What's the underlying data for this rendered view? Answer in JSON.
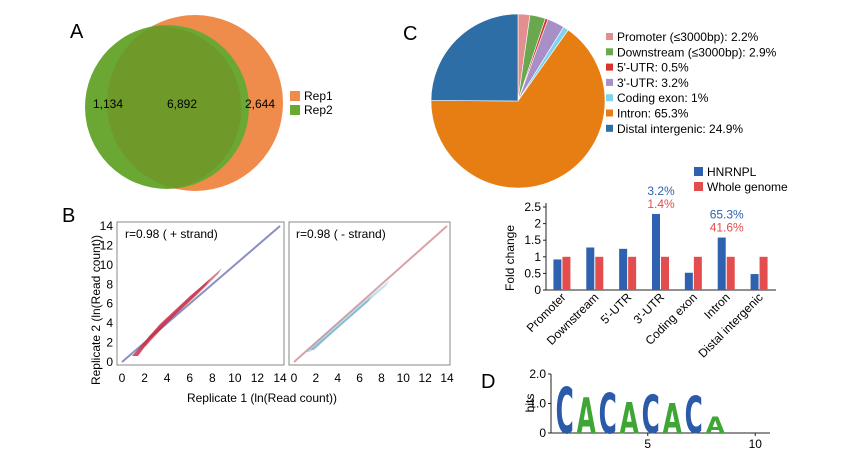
{
  "panels": {
    "A": {
      "letter": "A",
      "venn": {
        "left_only": "1,134",
        "overlap": "6,892",
        "right_only": "2,644",
        "legend": [
          {
            "label": "Rep1",
            "color": "#ef8c4b"
          },
          {
            "label": "Rep2",
            "color": "#6aa833"
          }
        ]
      }
    },
    "B": {
      "letter": "B",
      "plots": [
        {
          "annotation": "r=0.98 ( + strand)",
          "point_color": "#b01c2a"
        },
        {
          "annotation": "r=0.98 ( - strand)",
          "point_color": "#5aa9c8"
        }
      ],
      "ylabel": "Replicate 2 (ln(Read count))",
      "xlabel": "Replicate 1 (ln(Read count))",
      "ticks": [
        "0",
        "2",
        "4",
        "6",
        "8",
        "10",
        "12",
        "14"
      ]
    },
    "C": {
      "letter": "C",
      "pie": [
        {
          "label": "Promoter (≤3000bp): 2.2%",
          "value": 2.2,
          "color": "#e38f8f"
        },
        {
          "label": "Downstream (≤3000bp): 2.9%",
          "value": 2.9,
          "color": "#6aa84f"
        },
        {
          "label": "5'-UTR: 0.5%",
          "value": 0.5,
          "color": "#d9332b"
        },
        {
          "label": "3'-UTR: 3.2%",
          "value": 3.2,
          "color": "#a98fc7"
        },
        {
          "label": "Coding exon: 1%",
          "value": 1.0,
          "color": "#7fd3ee"
        },
        {
          "label": "Intron: 65.3%",
          "value": 65.3,
          "color": "#e67e14"
        },
        {
          "label": "Distal intergenic: 24.9%",
          "value": 24.9,
          "color": "#2e6ea6"
        }
      ]
    },
    "D": {
      "letter": "D",
      "logo": {
        "sequence": "CACACACA",
        "ylabel": "bits",
        "yticks": [
          "0",
          "1.0",
          "2.0"
        ],
        "xticks": [
          "5",
          "10"
        ],
        "colors": {
          "C": "#2b5aa8",
          "A": "#3fa535"
        }
      }
    }
  },
  "chart_data": {
    "type": "bar",
    "categories": [
      "Promoter",
      "Downstream",
      "5'-UTR",
      "3'-UTR",
      "Coding exon",
      "Intron",
      "Distal intergenic"
    ],
    "series": [
      {
        "name": "HNRNPL",
        "color": "#2e62b0",
        "values": [
          0.92,
          1.28,
          1.24,
          2.29,
          0.52,
          1.58,
          0.48
        ]
      },
      {
        "name": "Whole genome",
        "color": "#e34d4d",
        "values": [
          1,
          1,
          1,
          1,
          1,
          1,
          1
        ]
      }
    ],
    "ylabel": "Fold change",
    "ylim": [
      0,
      2.5
    ],
    "yticks": [
      "0",
      "0.5",
      "1",
      "1.5",
      "2",
      "2.5"
    ],
    "annotations": [
      {
        "category": "3'-UTR",
        "top": "3.2%",
        "bottom": "1.4%"
      },
      {
        "category": "Intron",
        "top": "65.3%",
        "bottom": "41.6%"
      }
    ],
    "legend_position": "top-right",
    "grid": false
  }
}
